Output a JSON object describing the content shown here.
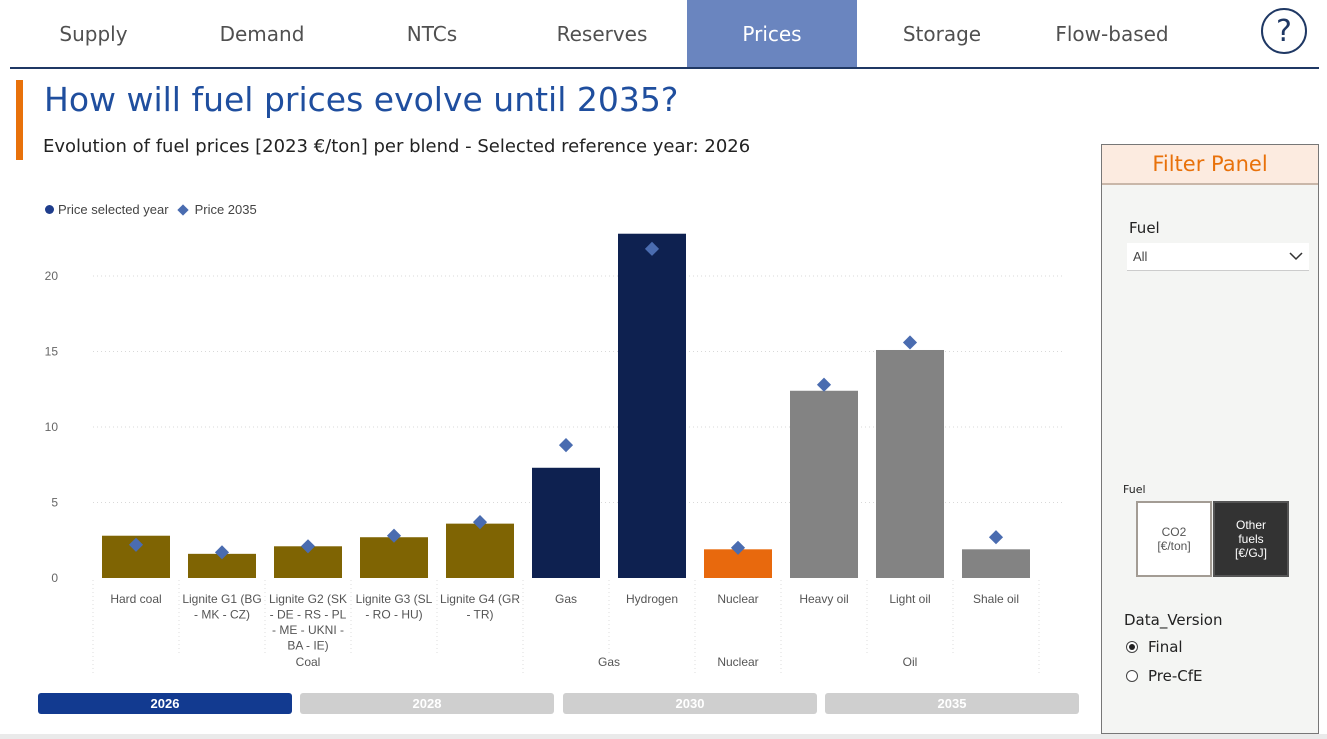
{
  "nav": {
    "tabs": [
      {
        "label": "Supply"
      },
      {
        "label": "Demand"
      },
      {
        "label": "NTCs"
      },
      {
        "label": "Reserves"
      },
      {
        "label": "Prices"
      },
      {
        "label": "Storage"
      },
      {
        "label": "Flow-based"
      }
    ],
    "active_tab": "Prices",
    "help_label": "?"
  },
  "page": {
    "title": "How will fuel prices evolve until 2035?",
    "subtitle": "Evolution of fuel prices [2023 €/ton] per blend - Selected reference year: 2026"
  },
  "legend": {
    "selected": "Price selected year",
    "target": "Price 2035"
  },
  "chart_data": {
    "type": "bar",
    "categories": [
      "Hard coal",
      "Lignite G1 (BG - MK - CZ)",
      "Lignite G2 (SK - DE - RS - PL - ME - UKNI - BA - IE)",
      "Lignite G3 (SL - RO - HU)",
      "Lignite G4 (GR - TR)",
      "Gas",
      "Hydrogen",
      "Nuclear",
      "Heavy oil",
      "Light oil",
      "Shale oil"
    ],
    "category_lines": [
      [
        "Hard coal"
      ],
      [
        "Lignite G1 (BG",
        "- MK - CZ)"
      ],
      [
        "Lignite G2 (SK",
        "- DE - RS - PL",
        "- ME - UKNI -",
        "BA - IE)"
      ],
      [
        "Lignite G3 (SL",
        "- RO - HU)"
      ],
      [
        "Lignite G4 (GR",
        "- TR)"
      ],
      [
        "Gas"
      ],
      [
        "Hydrogen"
      ],
      [
        "Nuclear"
      ],
      [
        "Heavy oil"
      ],
      [
        "Light oil"
      ],
      [
        "Shale oil"
      ]
    ],
    "groups": [
      {
        "name": "Coal",
        "start": 0,
        "end": 4
      },
      {
        "name": "Gas",
        "start": 5,
        "end": 6
      },
      {
        "name": "Nuclear",
        "start": 7,
        "end": 7
      },
      {
        "name": "Oil",
        "start": 8,
        "end": 10
      }
    ],
    "series": [
      {
        "name": "Price selected year",
        "values": [
          2.8,
          1.6,
          2.1,
          2.7,
          3.6,
          7.3,
          22.8,
          1.9,
          12.4,
          15.1,
          1.9
        ]
      },
      {
        "name": "Price 2035",
        "values": [
          2.2,
          1.7,
          2.1,
          2.8,
          3.7,
          8.8,
          21.8,
          2.0,
          12.8,
          15.6,
          2.7
        ]
      }
    ],
    "bar_colors": [
      "#7f6403",
      "#7f6403",
      "#7f6403",
      "#7f6403",
      "#7f6403",
      "#0e2150",
      "#0e2150",
      "#e8690d",
      "#838383",
      "#838383",
      "#838383"
    ],
    "marker_color": "#4a6cb0",
    "ylim": [
      0,
      23
    ],
    "yticks": [
      "0",
      "5",
      "10",
      "15",
      "20"
    ],
    "grid": true,
    "xlabel": "",
    "ylabel": ""
  },
  "year_slicer": {
    "options": [
      "2026",
      "2028",
      "2030",
      "2035"
    ],
    "selected": "2026"
  },
  "filter_panel": {
    "title": "Filter Panel",
    "fuel_label": "Fuel",
    "fuel_value": "All",
    "toggle_label": "Fuel",
    "toggle_options": [
      {
        "line1": "CO2",
        "line2": "[€/ton]"
      },
      {
        "line1": "Other",
        "line2": "fuels",
        "line3": "[€/GJ]"
      }
    ],
    "data_version_label": "Data_Version",
    "data_version_options": [
      "Final",
      "Pre-CfE"
    ],
    "data_version_selected": "Final"
  },
  "colors": {
    "accent": "#e8710a",
    "brand": "#1f3864",
    "active_tab": "#6a85bf",
    "slicer_selected": "#123a90",
    "slicer_idle": "#cfcfcf"
  }
}
